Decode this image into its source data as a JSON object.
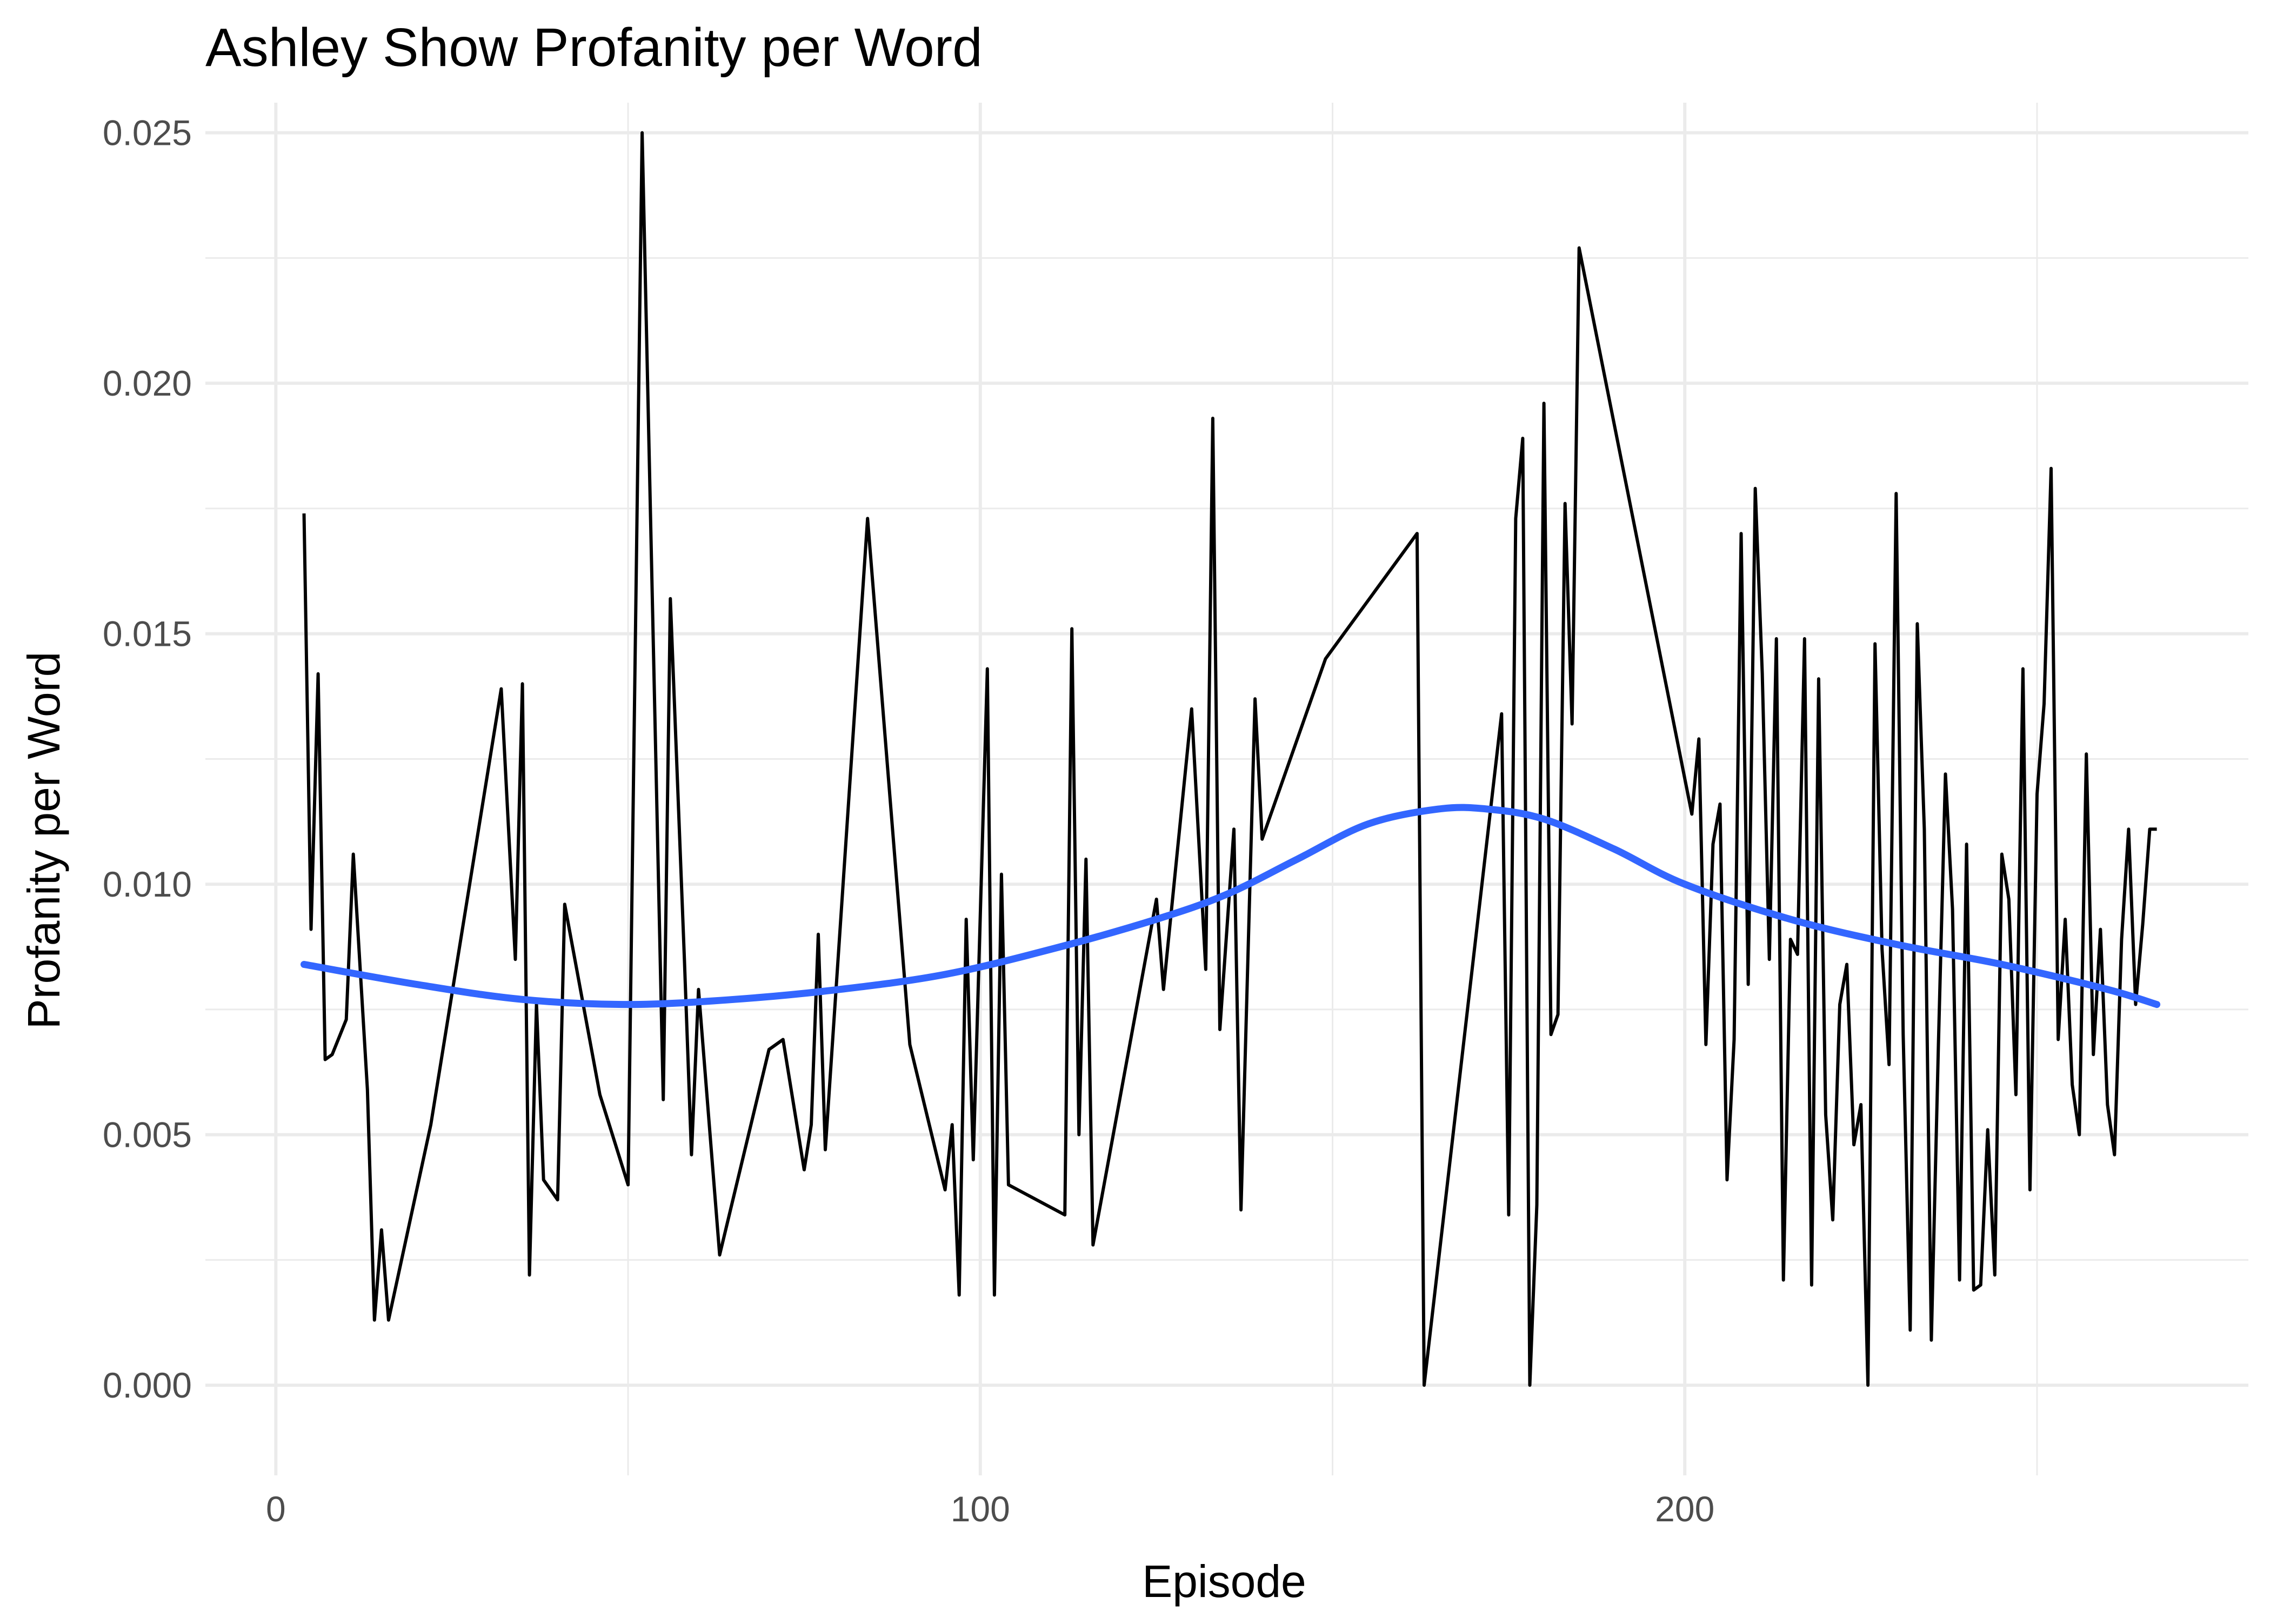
{
  "chart_data": {
    "type": "line",
    "title": "Ashley Show Profanity per Word",
    "xlabel": "Episode",
    "ylabel": "Profanity per Word",
    "xlim": [
      -10,
      280
    ],
    "ylim": [
      -0.0018,
      0.0256
    ],
    "x_ticks": [
      0,
      100,
      200
    ],
    "x_tick_labels": [
      "0",
      "100",
      "200"
    ],
    "x_minor_ticks": [
      50,
      150,
      250
    ],
    "y_ticks": [
      0,
      0.005,
      0.01,
      0.015,
      0.02,
      0.025
    ],
    "y_tick_labels": [
      "0.000",
      "0.005",
      "0.010",
      "0.015",
      "0.020",
      "0.025"
    ],
    "y_minor_ticks": [
      0.0025,
      0.0075,
      0.0125,
      0.0175,
      0.0225
    ],
    "grid": true,
    "legend": "none",
    "colors": {
      "series": "#000000",
      "smooth": "#3366FF",
      "grid": "#EBEBEB"
    },
    "series": [
      {
        "style": "line",
        "x": [
          4,
          5,
          6,
          7,
          8,
          10,
          11,
          13,
          14,
          15,
          16,
          22,
          32,
          34,
          35,
          36,
          37,
          38,
          40,
          41,
          46,
          50,
          52,
          55,
          56,
          58,
          59,
          60,
          63,
          70,
          72,
          75,
          76,
          77,
          78,
          84,
          90,
          95,
          96,
          97,
          98,
          99,
          101,
          102,
          103,
          104,
          112,
          113,
          114,
          115,
          116,
          125,
          126,
          130,
          132,
          133,
          134,
          136,
          137,
          139,
          140,
          149,
          162,
          163,
          174,
          175,
          176,
          177,
          178,
          179,
          180,
          181,
          182,
          183,
          184,
          185,
          201,
          202,
          203,
          204,
          205,
          206,
          207,
          208,
          209,
          210,
          211,
          212,
          213,
          214,
          215,
          216,
          217,
          218,
          219,
          220,
          221,
          222,
          223,
          224,
          225,
          226,
          227,
          228,
          229,
          230,
          231,
          232,
          233,
          234,
          235,
          236,
          237,
          238,
          239,
          240,
          241,
          242,
          243,
          244,
          245,
          246,
          247,
          248,
          249,
          250,
          251,
          252,
          253,
          254,
          255,
          256,
          257,
          258,
          259,
          260,
          261,
          262,
          263,
          264,
          265,
          266,
          267
        ],
        "y": [
          0.0174,
          0.0091,
          0.0142,
          0.0065,
          0.0066,
          0.0073,
          0.0106,
          0.0059,
          0.0013,
          0.0031,
          0.0013,
          0.0052,
          0.0139,
          0.0085,
          0.014,
          0.0022,
          0.0076,
          0.0041,
          0.0037,
          0.0096,
          0.0058,
          0.004,
          0.025,
          0.0057,
          0.0157,
          0.0085,
          0.0046,
          0.0079,
          0.0026,
          0.0067,
          0.0069,
          0.0043,
          0.0052,
          0.009,
          0.0047,
          0.0173,
          0.0068,
          0.0039,
          0.0052,
          0.0018,
          0.0093,
          0.0045,
          0.0143,
          0.0018,
          0.0102,
          0.004,
          0.0034,
          0.0151,
          0.005,
          0.0105,
          0.0028,
          0.0097,
          0.0079,
          0.0135,
          0.0083,
          0.0193,
          0.0071,
          0.0111,
          0.0035,
          0.0137,
          0.0109,
          0.0145,
          0.017,
          0.0,
          0.0134,
          0.0034,
          0.0173,
          0.0189,
          0.0,
          0.0036,
          0.0196,
          0.007,
          0.0074,
          0.0176,
          0.0132,
          0.0227,
          0.0114,
          0.0129,
          0.0068,
          0.0108,
          0.0116,
          0.0041,
          0.0069,
          0.017,
          0.008,
          0.0179,
          0.0142,
          0.0085,
          0.0149,
          0.0021,
          0.0089,
          0.0086,
          0.0149,
          0.002,
          0.0141,
          0.0054,
          0.0033,
          0.0076,
          0.0084,
          0.0048,
          0.0056,
          0.0,
          0.0148,
          0.0087,
          0.0064,
          0.0178,
          0.007,
          0.0011,
          0.0152,
          0.0111,
          0.0009,
          0.0068,
          0.0122,
          0.0095,
          0.0021,
          0.0108,
          0.0019,
          0.002,
          0.0051,
          0.0022,
          0.0106,
          0.0097,
          0.0058,
          0.0143,
          0.0039,
          0.0118,
          0.0136,
          0.0183,
          0.0069,
          0.0093,
          0.006,
          0.005,
          0.0126,
          0.0066,
          0.0091,
          0.0056,
          0.0046,
          0.0089,
          0.0111,
          0.0076,
          0.0092,
          0.0111,
          0.0111
        ]
      },
      {
        "style": "smooth",
        "x": [
          4,
          20,
          35,
          50,
          65,
          80,
          95,
          110,
          125,
          135,
          145,
          155,
          165,
          172,
          180,
          190,
          200,
          215,
          230,
          245,
          260,
          267
        ],
        "y": [
          0.0084,
          0.008,
          0.0077,
          0.0076,
          0.0077,
          0.0079,
          0.0082,
          0.0087,
          0.0093,
          0.0098,
          0.0105,
          0.0112,
          0.0115,
          0.0115,
          0.0113,
          0.0107,
          0.01,
          0.0093,
          0.0088,
          0.0084,
          0.0079,
          0.0076
        ]
      }
    ]
  }
}
